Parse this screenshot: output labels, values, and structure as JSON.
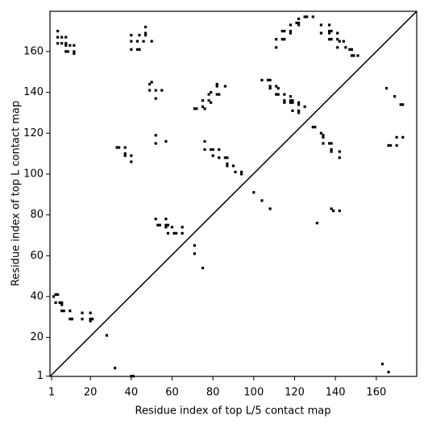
{
  "chart_data": {
    "type": "scatter",
    "x_label": "Residue index of top L/5 contact map",
    "y_label": "Residue index of top L contact map",
    "color": "#000000",
    "xlim": [
      0.2,
      179.8
    ],
    "ylim": [
      0.9,
      179.7
    ],
    "xticks": [
      1,
      20,
      40,
      60,
      80,
      100,
      120,
      140,
      160
    ],
    "yticks": [
      1,
      20,
      40,
      60,
      80,
      100,
      120,
      140,
      160
    ],
    "x": [
      3,
      4,
      2,
      3,
      5,
      6,
      6,
      6,
      7,
      10,
      10,
      11,
      16,
      16,
      20,
      20,
      21,
      20,
      28,
      32,
      40,
      41,
      4,
      4,
      6,
      8,
      4,
      6,
      8,
      8,
      8,
      9,
      10,
      12,
      12,
      12,
      40,
      40,
      40,
      43,
      43,
      44,
      44,
      46,
      47,
      47,
      47,
      50,
      49,
      50,
      49,
      52,
      55,
      52,
      33,
      34,
      37,
      37,
      37,
      40,
      40,
      52,
      52,
      57,
      52,
      53,
      54,
      57,
      57,
      58,
      57,
      58,
      60,
      61,
      62,
      65,
      65,
      71,
      71,
      75,
      71,
      72,
      75,
      76,
      75,
      78,
      79,
      78,
      79,
      82,
      82,
      82,
      83,
      86,
      76,
      76,
      79,
      80,
      80,
      83,
      83,
      86,
      87,
      87,
      87,
      90,
      91,
      94,
      94,
      100,
      104,
      108,
      104,
      107,
      108,
      108,
      108,
      111,
      112,
      111,
      112,
      115,
      115,
      115,
      118,
      118,
      119,
      119,
      119,
      122,
      122,
      122,
      122,
      125,
      118,
      111,
      111,
      114,
      115,
      114,
      115,
      118,
      118,
      118,
      121,
      122,
      122,
      122,
      125,
      126,
      129,
      133,
      133,
      137,
      137,
      137,
      138,
      137,
      138,
      141,
      141,
      142,
      141,
      144,
      145,
      147,
      148,
      148,
      149,
      151,
      129,
      130,
      133,
      134,
      134,
      134,
      137,
      138,
      138,
      138,
      142,
      142,
      131,
      138,
      139,
      142,
      163,
      166,
      165,
      166,
      167,
      169,
      170,
      170,
      173,
      172,
      173
    ],
    "values": [
      41,
      41,
      40,
      37,
      37,
      37,
      36,
      33,
      33,
      33,
      29,
      29,
      32,
      29,
      32,
      29,
      29,
      28,
      21,
      5,
      1,
      1,
      170,
      167,
      167,
      167,
      164,
      164,
      164,
      163,
      160,
      160,
      163,
      163,
      160,
      159,
      168,
      165,
      161,
      165,
      161,
      161,
      168,
      165,
      172,
      169,
      168,
      165,
      144,
      145,
      141,
      141,
      141,
      137,
      113,
      113,
      113,
      110,
      109,
      109,
      106,
      119,
      115,
      116,
      78,
      75,
      75,
      78,
      75,
      75,
      74,
      71,
      74,
      71,
      71,
      74,
      71,
      65,
      61,
      54,
      132,
      132,
      133,
      132,
      136,
      136,
      135,
      139,
      140,
      139,
      143,
      144,
      139,
      143,
      116,
      112,
      112,
      112,
      109,
      112,
      108,
      108,
      108,
      105,
      104,
      104,
      101,
      101,
      100,
      91,
      87,
      83,
      146,
      146,
      146,
      143,
      142,
      143,
      142,
      139,
      139,
      139,
      136,
      135,
      138,
      136,
      135,
      136,
      131,
      135,
      134,
      131,
      130,
      133,
      135,
      166,
      162,
      170,
      170,
      166,
      166,
      173,
      170,
      169,
      174,
      174,
      173,
      176,
      177,
      177,
      177,
      173,
      169,
      173,
      170,
      169,
      170,
      166,
      166,
      169,
      166,
      165,
      162,
      165,
      162,
      161,
      161,
      158,
      158,
      158,
      123,
      123,
      120,
      119,
      118,
      115,
      115,
      115,
      112,
      111,
      111,
      108,
      76,
      83,
      82,
      82,
      7,
      3,
      142,
      114,
      114,
      138,
      118,
      114,
      118,
      134,
      134
    ]
  }
}
